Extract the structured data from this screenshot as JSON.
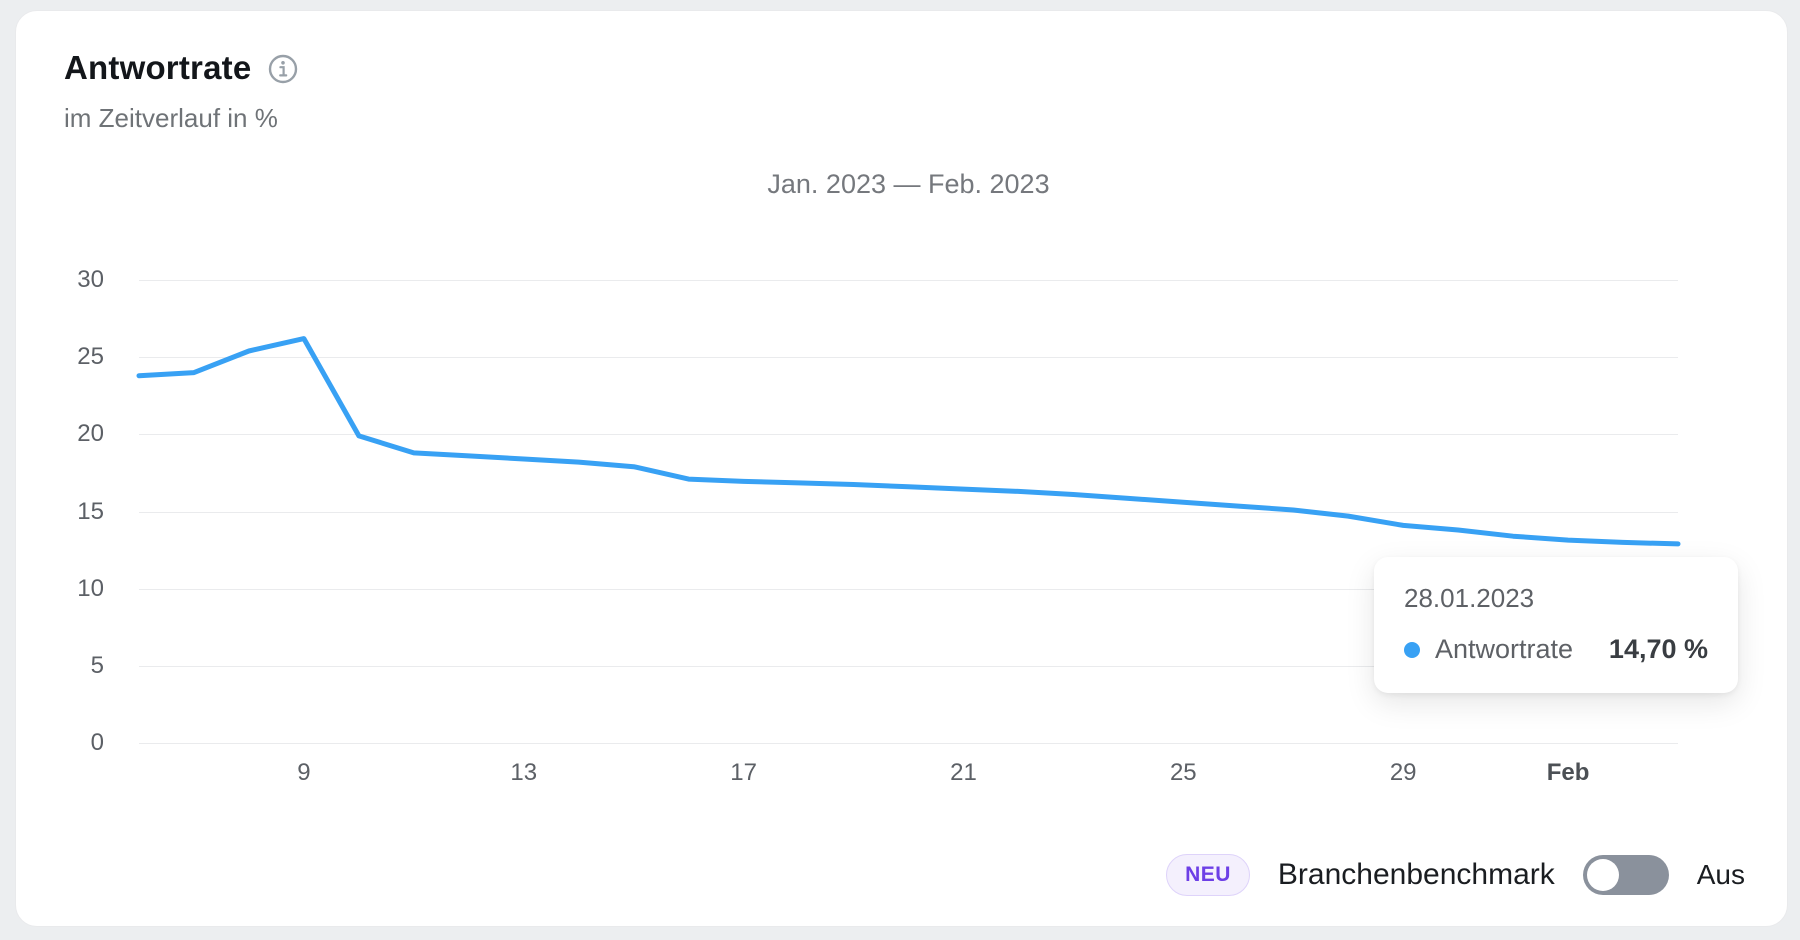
{
  "header": {
    "title": "Antwortrate",
    "subtitle": "im Zeitverlauf in %"
  },
  "chart_data": {
    "type": "line",
    "title": "Jan. 2023 — Feb. 2023",
    "ylabel": "",
    "ylim": [
      0,
      30
    ],
    "yticks": [
      0,
      5,
      10,
      15,
      20,
      25,
      30
    ],
    "grid": "horizontal",
    "x": [
      "06.01.2023",
      "07.01.2023",
      "08.01.2023",
      "09.01.2023",
      "10.01.2023",
      "11.01.2023",
      "12.01.2023",
      "13.01.2023",
      "14.01.2023",
      "15.01.2023",
      "16.01.2023",
      "17.01.2023",
      "18.01.2023",
      "19.01.2023",
      "20.01.2023",
      "21.01.2023",
      "22.01.2023",
      "23.01.2023",
      "24.01.2023",
      "25.01.2023",
      "26.01.2023",
      "27.01.2023",
      "28.01.2023",
      "29.01.2023",
      "30.01.2023",
      "31.01.2023",
      "01.02.2023",
      "02.02.2023",
      "03.02.2023"
    ],
    "xticks": [
      {
        "index": 3,
        "label": "9",
        "bold": false
      },
      {
        "index": 7,
        "label": "13",
        "bold": false
      },
      {
        "index": 11,
        "label": "17",
        "bold": false
      },
      {
        "index": 15,
        "label": "21",
        "bold": false
      },
      {
        "index": 19,
        "label": "25",
        "bold": false
      },
      {
        "index": 23,
        "label": "29",
        "bold": false
      },
      {
        "index": 26,
        "label": "Feb",
        "bold": true
      }
    ],
    "series": [
      {
        "name": "Antwortrate",
        "color": "#38a1f4",
        "values": [
          23.8,
          24.0,
          25.4,
          26.2,
          19.9,
          18.8,
          18.6,
          18.4,
          18.2,
          17.9,
          17.1,
          16.95,
          16.85,
          16.75,
          16.6,
          16.45,
          16.3,
          16.1,
          15.85,
          15.6,
          15.35,
          15.1,
          14.7,
          14.1,
          13.8,
          13.4,
          13.15,
          13.0,
          12.9
        ]
      }
    ],
    "legend_position": "none"
  },
  "tooltip": {
    "date": "28.01.2023",
    "series_label": "Antwortrate",
    "value": "14,70 %"
  },
  "footer": {
    "badge": "NEU",
    "label": "Branchenbenchmark",
    "toggle_on": false,
    "toggle_state_label": "Aus"
  },
  "colors": {
    "line": "#38a1f4",
    "badge_text": "#6d3fe6",
    "badge_bg": "#f4f0fd",
    "badge_border": "#ded3fa",
    "toggle_track": "#8a919c",
    "grid": "#eaebed",
    "axis_text": "#5c6066",
    "icon_gray": "#98a0a8"
  }
}
